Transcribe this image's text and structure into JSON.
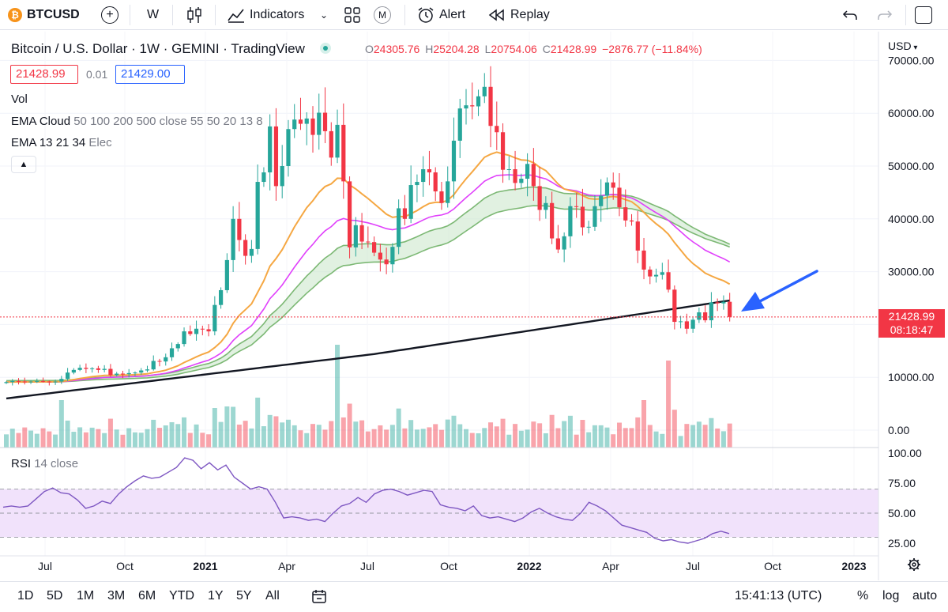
{
  "toolbar": {
    "symbol": "BTCUSD",
    "coin_glyph": "₿",
    "interval": "W",
    "indicators_label": "Indicators",
    "m_label": "M",
    "alert_label": "Alert",
    "replay_label": "Replay"
  },
  "legend": {
    "title": "Bitcoin / U.S. Dollar · 1W · GEMINI · TradingView",
    "o_label": "O",
    "o_val": "24305.76",
    "h_label": "H",
    "h_val": "25204.28",
    "l_label": "L",
    "l_val": "20754.06",
    "c_label": "C",
    "c_val": "21428.99",
    "change": "−2876.77 (−11.84%)",
    "bid": "21428.99",
    "spread": "0.01",
    "ask": "21429.00",
    "vol": "Vol",
    "ema_cloud_name": "EMA Cloud",
    "ema_cloud_params": "50 100 200 500 close 55 50 20 13 8",
    "ema_name": "EMA 13 21 34",
    "ema_params": "Elec",
    "rsi_name": "RSI",
    "rsi_params": "14 close",
    "currency": "USD",
    "last_price": "21428.99",
    "countdown": "08:18:47"
  },
  "bottom": {
    "ranges": [
      "1D",
      "5D",
      "1M",
      "3M",
      "6M",
      "YTD",
      "1Y",
      "5Y",
      "All"
    ],
    "time": "15:41:13 (UTC)",
    "percent": "%",
    "log": "log",
    "auto": "auto"
  },
  "colors": {
    "up": "#26a69a",
    "down": "#f23645",
    "ema_orange": "#f5a742",
    "ema_magenta": "#e040fb",
    "ema_green": "#7cb874",
    "ema_black": "#131722",
    "rsi_line": "#7e57c2",
    "rsi_band": "#f1e2fb",
    "arrow": "#2962ff"
  },
  "chart_data": {
    "type": "candlestick",
    "price_axis": {
      "ticks": [
        0,
        10000,
        20000,
        30000,
        40000,
        50000,
        60000,
        70000
      ],
      "tick_labels": [
        "0.00",
        "10000.00",
        "20000.00",
        "30000.00",
        "40000.00",
        "50000.00",
        "60000.00",
        "70000.00"
      ]
    },
    "rsi_axis": {
      "ticks": [
        25,
        50,
        75,
        100
      ],
      "tick_labels": [
        "25.00",
        "50.00",
        "75.00",
        "100.00"
      ],
      "band": [
        30,
        70
      ]
    },
    "time_axis": [
      "Jul",
      "Oct",
      "2021",
      "Apr",
      "Jul",
      "Oct",
      "2022",
      "Apr",
      "Jul",
      "Oct",
      "2023"
    ],
    "weekly_close": [
      9100,
      9300,
      9200,
      9100,
      9200,
      9300,
      9200,
      9100,
      9200,
      9700,
      10900,
      11400,
      11800,
      11600,
      11700,
      11400,
      11600,
      10400,
      10700,
      10600,
      10800,
      10900,
      11300,
      11500,
      13100,
      13000,
      13800,
      15500,
      16300,
      18700,
      18200,
      19200,
      19100,
      18700,
      23700,
      26500,
      32200,
      40000,
      36000,
      33000,
      34300,
      47000,
      48800,
      57500,
      46200,
      50000,
      57000,
      58800,
      58000,
      59000,
      55900,
      60100,
      56600,
      51600,
      57800,
      47100,
      34600,
      38800,
      35700,
      35600,
      33600,
      32300,
      31400,
      34700,
      42000,
      40000,
      46400,
      47000,
      49400,
      48800,
      45200,
      43000,
      47100,
      54800,
      60900,
      61500,
      61300,
      63200,
      65000,
      57600,
      56400,
      49300,
      49400,
      46800,
      47600,
      50400,
      46200,
      41700,
      43000,
      36300,
      34200,
      36700,
      42400,
      42300,
      38400,
      38500,
      42400,
      44400,
      46900,
      45900,
      42200,
      39700,
      39500,
      34000,
      30400,
      29100,
      29400,
      29900,
      26600,
      20500,
      20600,
      19200,
      20900,
      22300,
      20800,
      24200,
      24000,
      24300,
      21429
    ],
    "rsi": [
      55,
      56,
      55,
      56,
      62,
      68,
      71,
      67,
      66,
      61,
      54,
      56,
      60,
      58,
      66,
      72,
      77,
      81,
      79,
      80,
      84,
      88,
      96,
      94,
      87,
      92,
      86,
      90,
      80,
      75,
      70,
      72,
      70,
      59,
      46,
      47,
      46,
      44,
      45,
      43,
      50,
      56,
      58,
      63,
      59,
      66,
      69,
      70,
      68,
      65,
      67,
      69,
      68,
      57,
      55,
      54,
      52,
      56,
      48,
      46,
      47,
      45,
      43,
      46,
      51,
      54,
      50,
      47,
      45,
      44,
      50,
      59,
      56,
      52,
      46,
      40,
      38,
      36,
      34,
      29,
      27,
      28,
      26,
      25,
      27,
      29,
      33,
      35,
      33
    ]
  }
}
